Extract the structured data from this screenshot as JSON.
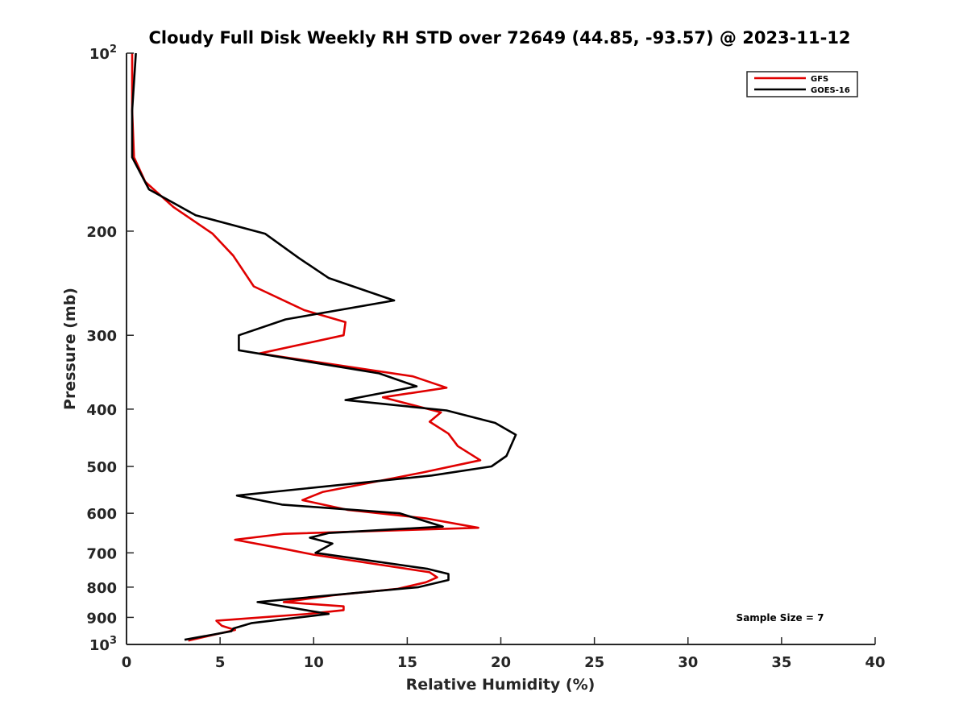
{
  "chart_data": {
    "type": "line",
    "title": "Cloudy Full Disk Weekly RH STD over 72649 (44.85, -93.57) @ 2023-11-12",
    "xlabel": "Relative Humidity (%)",
    "ylabel": "Pressure (mb)",
    "xlim": [
      0,
      40
    ],
    "ylim": [
      100,
      1000
    ],
    "y_scale": "log",
    "y_reversed": true,
    "x_ticks": [
      "0",
      "5",
      "10",
      "15",
      "20",
      "25",
      "30",
      "35",
      "40"
    ],
    "y_ticks": [
      {
        "value": 100,
        "base": "10",
        "exp": "2"
      },
      {
        "value": 200,
        "label": "200"
      },
      {
        "value": 300,
        "label": "300"
      },
      {
        "value": 400,
        "label": "400"
      },
      {
        "value": 500,
        "label": "500"
      },
      {
        "value": 600,
        "label": "600"
      },
      {
        "value": 700,
        "label": "700"
      },
      {
        "value": 800,
        "label": "800"
      },
      {
        "value": 900,
        "label": "900"
      },
      {
        "value": 1000,
        "base": "10",
        "exp": "3"
      }
    ],
    "grid": false,
    "legend_position": "top-right",
    "annotation": "Sample Size = 7",
    "series": [
      {
        "name": "GFS",
        "color": "#e00000",
        "points": [
          [
            0.3,
            100
          ],
          [
            0.3,
            125
          ],
          [
            0.4,
            150
          ],
          [
            1.0,
            165
          ],
          [
            2.5,
            182
          ],
          [
            4.6,
            202
          ],
          [
            5.7,
            220
          ],
          [
            6.8,
            248
          ],
          [
            9.5,
            272
          ],
          [
            11.7,
            285
          ],
          [
            11.6,
            300
          ],
          [
            7.1,
            322
          ],
          [
            15.3,
            352
          ],
          [
            17.1,
            368
          ],
          [
            13.7,
            382
          ],
          [
            16.8,
            405
          ],
          [
            16.2,
            420
          ],
          [
            17.2,
            440
          ],
          [
            17.7,
            462
          ],
          [
            18.9,
            488
          ],
          [
            15.8,
            512
          ],
          [
            10.5,
            552
          ],
          [
            9.4,
            570
          ],
          [
            11.8,
            592
          ],
          [
            16.0,
            612
          ],
          [
            18.8,
            635
          ],
          [
            8.4,
            650
          ],
          [
            5.8,
            665
          ],
          [
            8.5,
            690
          ],
          [
            10.0,
            705
          ],
          [
            16.2,
            755
          ],
          [
            16.6,
            770
          ],
          [
            16.0,
            785
          ],
          [
            14.5,
            805
          ],
          [
            11.0,
            826
          ],
          [
            8.4,
            848
          ],
          [
            11.6,
            862
          ],
          [
            11.6,
            875
          ],
          [
            9.7,
            888
          ],
          [
            4.8,
            912
          ],
          [
            5.1,
            930
          ],
          [
            5.8,
            945
          ],
          [
            3.3,
            985
          ]
        ]
      },
      {
        "name": "GOES-16",
        "color": "#000000",
        "points": [
          [
            0.5,
            100
          ],
          [
            0.3,
            125
          ],
          [
            0.3,
            150
          ],
          [
            1.2,
            170
          ],
          [
            3.7,
            188
          ],
          [
            7.4,
            202
          ],
          [
            9.2,
            222
          ],
          [
            10.8,
            240
          ],
          [
            14.3,
            262
          ],
          [
            8.5,
            282
          ],
          [
            6.0,
            300
          ],
          [
            6.0,
            318
          ],
          [
            13.5,
            348
          ],
          [
            15.5,
            366
          ],
          [
            11.7,
            386
          ],
          [
            17.1,
            402
          ],
          [
            19.7,
            422
          ],
          [
            20.8,
            442
          ],
          [
            20.3,
            480
          ],
          [
            19.5,
            500
          ],
          [
            16.3,
            518
          ],
          [
            5.9,
            560
          ],
          [
            8.3,
            580
          ],
          [
            14.6,
            600
          ],
          [
            16.9,
            632
          ],
          [
            10.8,
            648
          ],
          [
            9.8,
            660
          ],
          [
            11.0,
            675
          ],
          [
            10.1,
            700
          ],
          [
            16.1,
            745
          ],
          [
            17.2,
            760
          ],
          [
            17.2,
            778
          ],
          [
            15.6,
            800
          ],
          [
            7.0,
            848
          ],
          [
            10.8,
            888
          ],
          [
            6.7,
            920
          ],
          [
            5.7,
            940
          ],
          [
            5.6,
            950
          ],
          [
            3.1,
            982
          ]
        ]
      }
    ]
  }
}
